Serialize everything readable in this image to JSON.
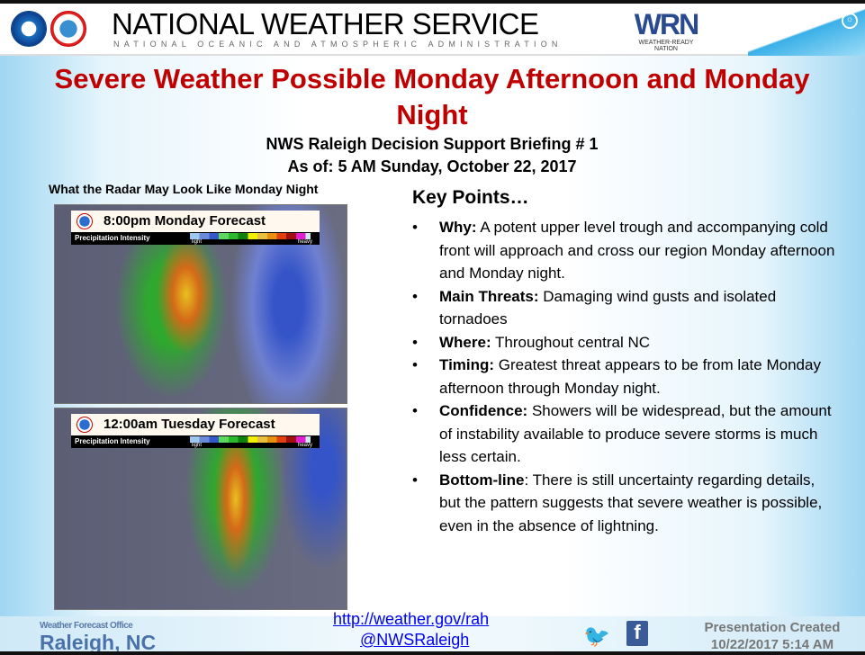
{
  "header": {
    "title": "NATIONAL WEATHER SERVICE",
    "subtitle": "NATIONAL OCEANIC AND ATMOSPHERIC ADMINISTRATION",
    "wrn_logo": "WRN",
    "wrn_tagline": "WEATHER-READY NATION"
  },
  "title": "Severe Weather Possible Monday Afternoon and Monday Night",
  "subtitle_line1": "NWS Raleigh Decision Support Briefing # 1",
  "subtitle_line2": "As of: 5 AM Sunday, October 22, 2017",
  "radar": {
    "caption": "What the Radar May Look Like Monday Night",
    "maps": [
      {
        "title": "8:00pm Monday Forecast"
      },
      {
        "title": "12:00am Tuesday Forecast"
      }
    ],
    "legend_label": "Precipitation Intensity",
    "legend_light": "light",
    "legend_heavy": "heavy"
  },
  "key_points": {
    "title": "Key Points…",
    "items": [
      {
        "label": "Why:",
        "text": " A potent upper level trough and accompanying cold front will approach and cross our region Monday afternoon and Monday night."
      },
      {
        "label": "Main Threats:",
        "text": " Damaging wind gusts and isolated tornadoes"
      },
      {
        "label": "Where:",
        "text": " Throughout central NC"
      },
      {
        "label": "Timing:",
        "text": " Greatest threat appears to be from late Monday afternoon through Monday night."
      },
      {
        "label": "Confidence:",
        "text": " Showers will be widespread, but the amount of instability available to produce severe storms is much less certain."
      },
      {
        "label": "Bottom-line",
        "text": ": There is still uncertainty regarding details, but the pattern suggests that severe weather is possible, even in the absence of lightning."
      }
    ]
  },
  "footer": {
    "office_label": "Weather Forecast Office",
    "office": "Raleigh, NC",
    "url": "http://weather.gov/rah",
    "handle": "@NWSRaleigh",
    "created_label": "Presentation Created",
    "created": "10/22/2017 5:14 AM"
  }
}
